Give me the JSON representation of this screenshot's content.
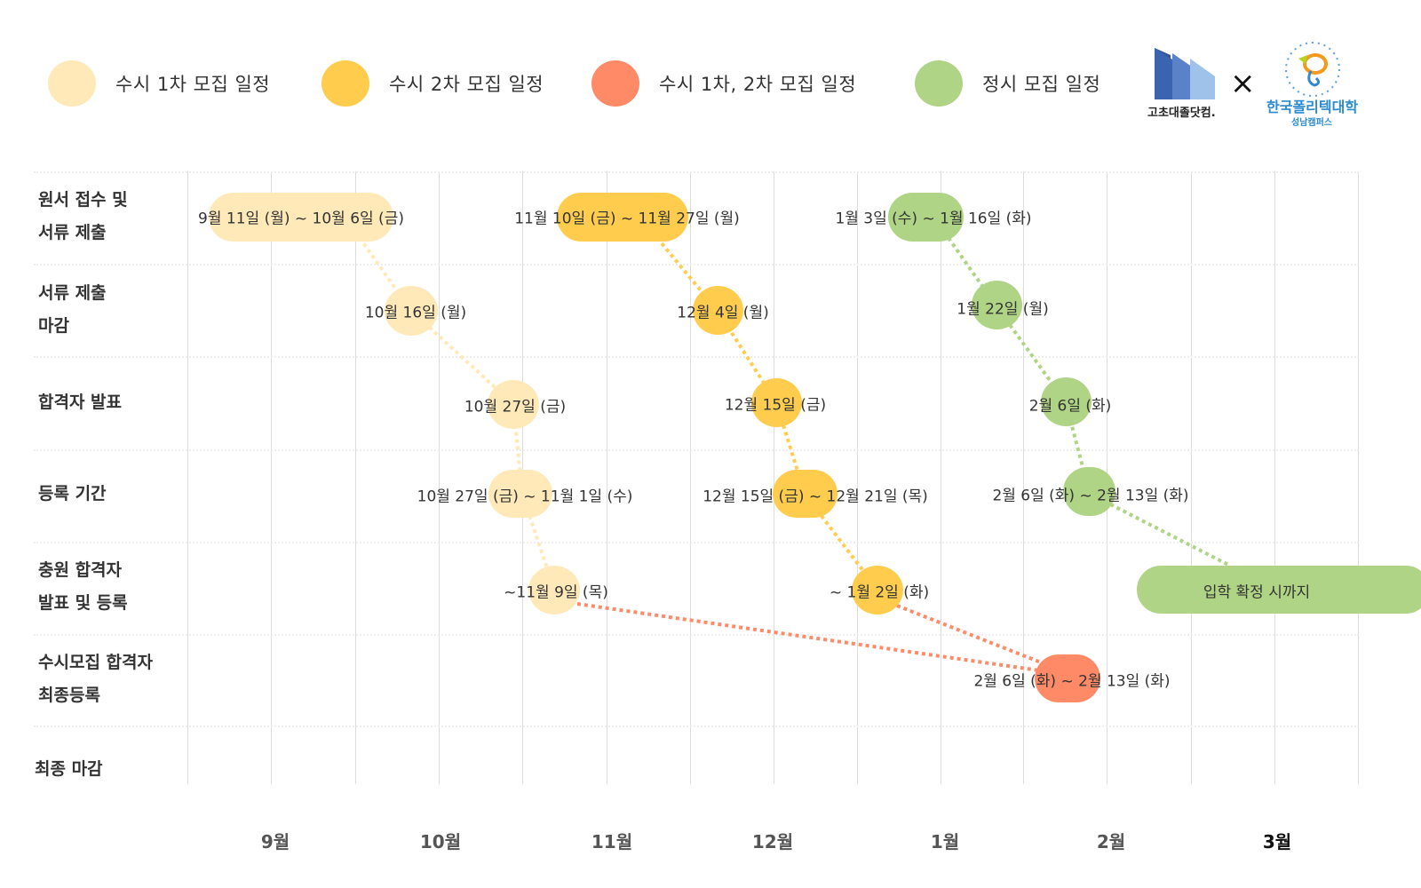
{
  "legend": [
    {
      "label": "수시 1차 모집 일정",
      "color": "#FFE9B8"
    },
    {
      "label": "수시 2차 모집 일정",
      "color": "#FFCC4D"
    },
    {
      "label": "수시 1차, 2차 모집 일정",
      "color": "#FF8A68"
    },
    {
      "label": "정시 모집 일정",
      "color": "#B0D485"
    }
  ],
  "logos": {
    "left": "고초대졸닷컴.",
    "separator": "×",
    "right_title": "한국폴리텍대학",
    "right_sub": "성남캠퍼스"
  },
  "rows": [
    {
      "line1": "원서 접수 및",
      "line2": "서류 제출"
    },
    {
      "line1": "서류 제출",
      "line2": "마감"
    },
    {
      "line1": "합격자 발표",
      "line2": ""
    },
    {
      "line1": "등록 기간",
      "line2": ""
    },
    {
      "line1": "충원 합격자",
      "line2": "발표 및 등록"
    },
    {
      "line1": "수시모집 합격자",
      "line2": "최종등록"
    },
    {
      "line1": "최종 마감",
      "line2": ""
    }
  ],
  "months": [
    "9월",
    "10월",
    "11월",
    "12월",
    "1월",
    "2월",
    "3월"
  ],
  "schedules": {
    "early1": [
      "9월 11일 (월) ~ 10월 6일 (금)",
      "10월 16일 (월)",
      "10월 27일 (금)",
      "10월 27일 (금) ~ 11월 1일 (수)",
      "~11월 9일 (목)"
    ],
    "early2": [
      "11월 10일 (금) ~ 11월 27일 (월)",
      "12월 4일 (월)",
      "12월 15일 (금)",
      "12월 15일 (금) ~ 12월 21일 (목)",
      "~ 1월 2일 (화)"
    ],
    "regular": [
      "1월 3일 (수) ~ 1월 16일 (화)",
      "1월 22일 (월)",
      "2월 6일 (화)",
      "2월 6일 (화) ~ 2월 13일 (화)",
      "입학 확정 시까지"
    ],
    "early_final": "2월 6일 (화) ~ 2월 13일 (화)"
  }
}
